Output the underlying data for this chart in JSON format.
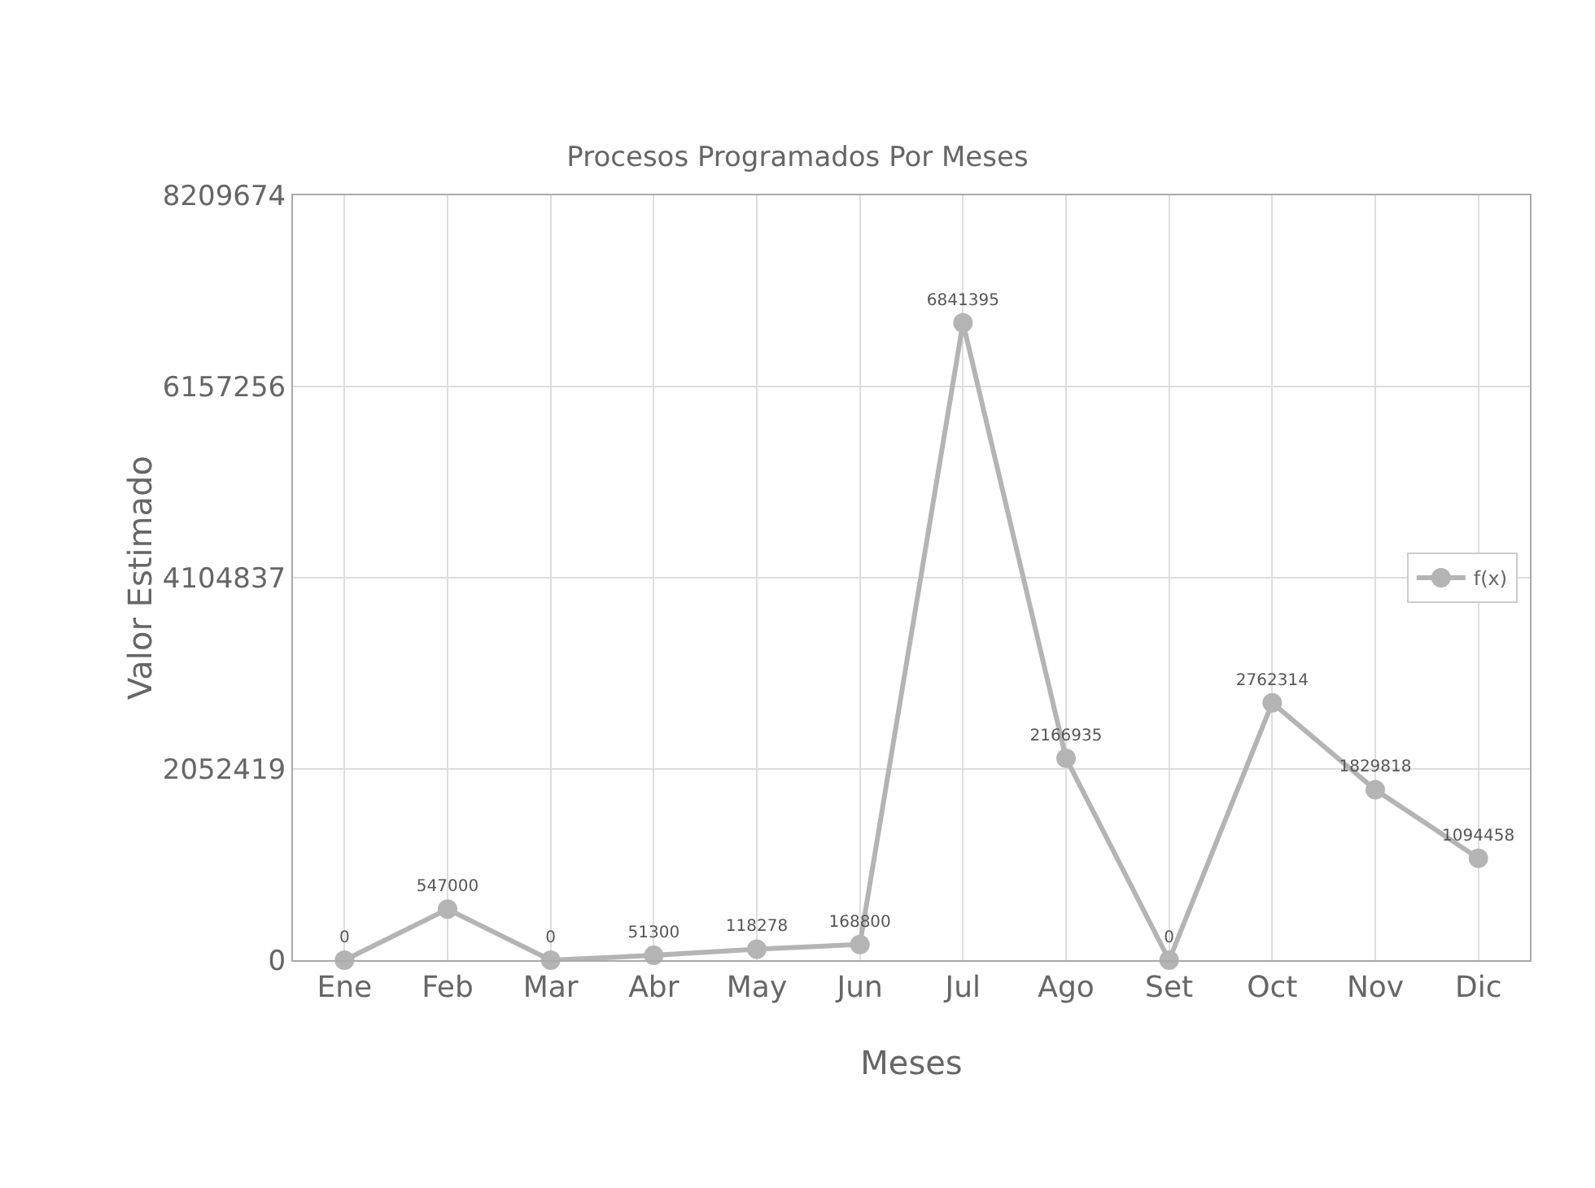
{
  "chart_data": {
    "type": "line",
    "title": "Procesos Programados Por Meses",
    "xlabel": "Meses",
    "ylabel": "Valor Estimado",
    "categories": [
      "Ene",
      "Feb",
      "Mar",
      "Abr",
      "May",
      "Jun",
      "Jul",
      "Ago",
      "Set",
      "Oct",
      "Nov",
      "Dic"
    ],
    "series": [
      {
        "name": "f(x)",
        "color": "#b4b4b4",
        "values": [
          0,
          547000,
          0,
          51300,
          118278,
          168800,
          6841395,
          2166935,
          0,
          2762314,
          1829818,
          1094458
        ]
      }
    ],
    "ylim": [
      0,
      8209674
    ],
    "yticks": [
      0,
      2052419,
      4104837,
      6157256,
      8209674
    ],
    "grid": true,
    "legend": "right",
    "marker": "circle",
    "line_style": "solid",
    "data_labels": true
  }
}
